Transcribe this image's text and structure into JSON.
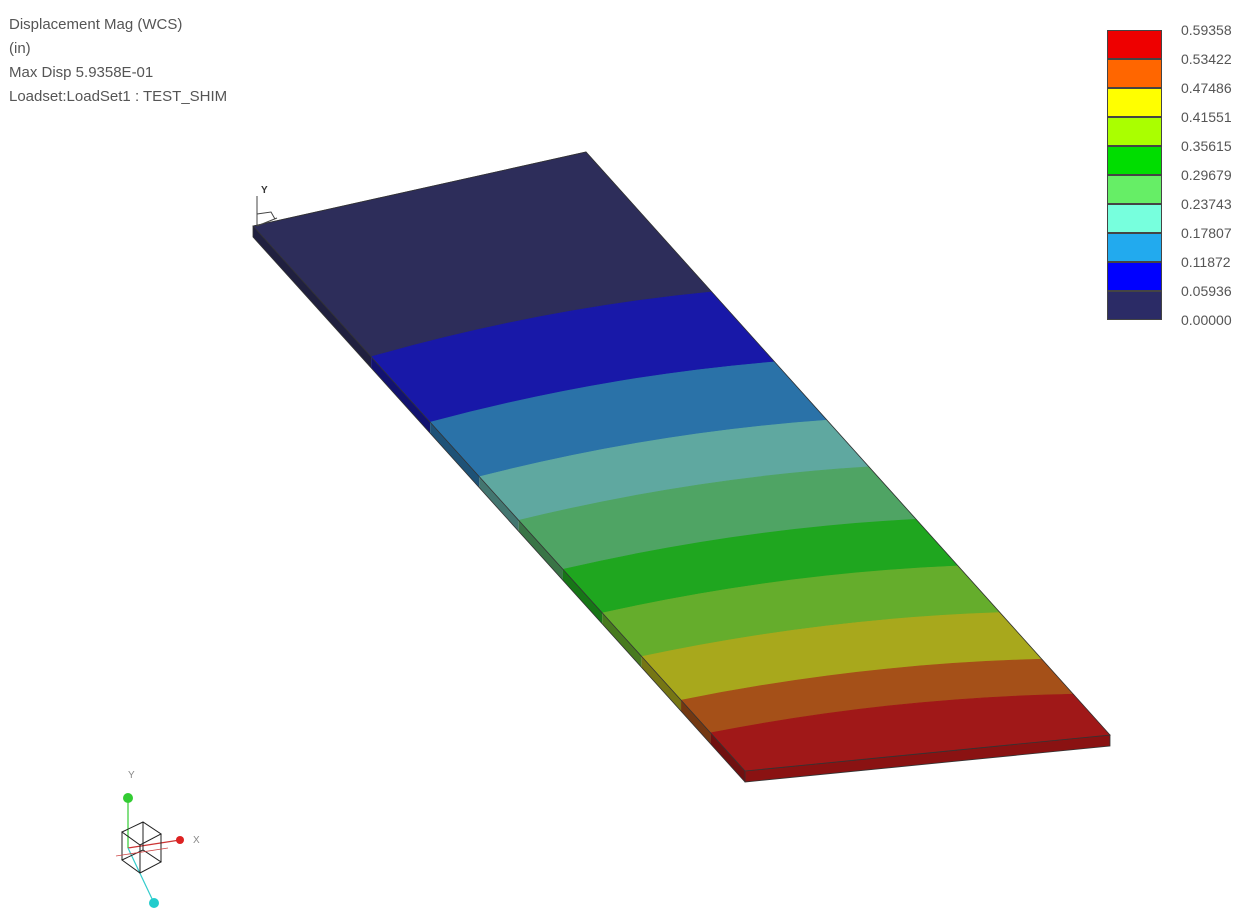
{
  "info": {
    "result_title": "Displacement Mag (WCS)",
    "units": "(in)",
    "max_disp": "Max Disp  5.9358E-01",
    "loadset": "Loadset:LoadSet1 :  TEST_SHIM"
  },
  "legend": {
    "values": [
      "0.59358",
      "0.53422",
      "0.47486",
      "0.41551",
      "0.35615",
      "0.29679",
      "0.23743",
      "0.17807",
      "0.11872",
      "0.05936",
      "0.00000"
    ],
    "colors": [
      "#ee0000",
      "#ff6600",
      "#ffff00",
      "#aaff00",
      "#00dd00",
      "#66ee66",
      "#77ffdd",
      "#22aaee",
      "#0000ff",
      "#2b2b66"
    ]
  },
  "model": {
    "band_colors": [
      "#2d2d5a",
      "#1818a8",
      "#2a72a8",
      "#5fa8a0",
      "#4fa464",
      "#1fa61f",
      "#65ad2c",
      "#a8a81c",
      "#a55018",
      "#a01818"
    ],
    "origin_axis_label": "Y"
  },
  "triad": {
    "x_label": "X",
    "y_label": "Y"
  }
}
